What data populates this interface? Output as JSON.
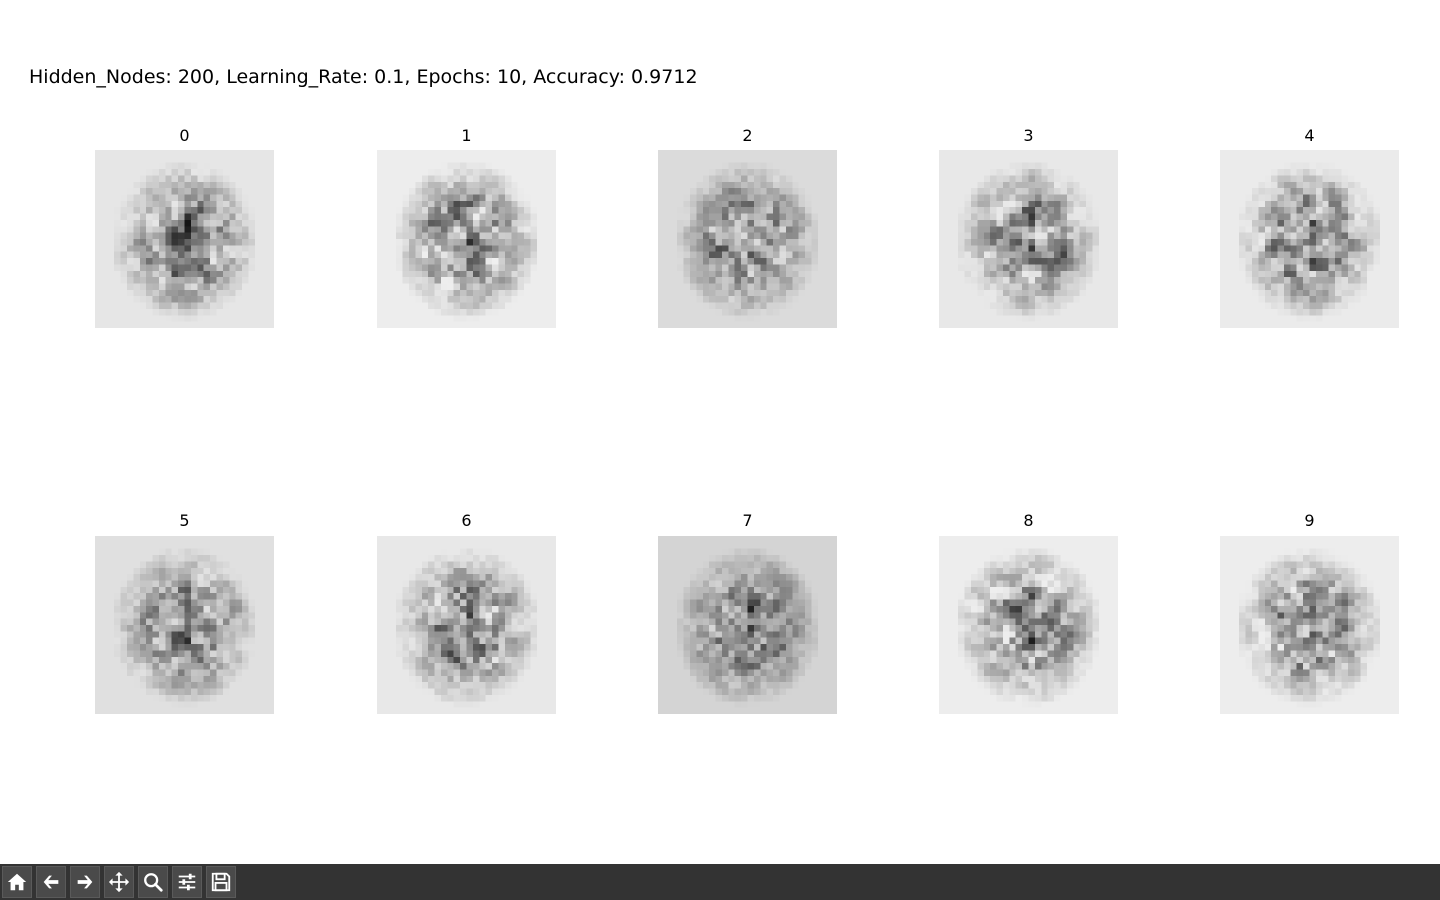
{
  "figure": {
    "suptitle": "Hidden_Nodes: 200, Learning_Rate: 0.1, Epochs: 10, Accuracy: 0.9712"
  },
  "panels": [
    {
      "label": "0",
      "background_gray": 0.9
    },
    {
      "label": "1",
      "background_gray": 0.93
    },
    {
      "label": "2",
      "background_gray": 0.86
    },
    {
      "label": "3",
      "background_gray": 0.91
    },
    {
      "label": "4",
      "background_gray": 0.92
    },
    {
      "label": "5",
      "background_gray": 0.88
    },
    {
      "label": "6",
      "background_gray": 0.91
    },
    {
      "label": "7",
      "background_gray": 0.83
    },
    {
      "label": "8",
      "background_gray": 0.93
    },
    {
      "label": "9",
      "background_gray": 0.93
    }
  ],
  "image": {
    "colormap": "gray_r",
    "grid_size": 28
  },
  "toolbar": {
    "background": "#333333",
    "buttons": [
      {
        "name": "home",
        "icon": "home-icon"
      },
      {
        "name": "back",
        "icon": "arrow-left-icon"
      },
      {
        "name": "forward",
        "icon": "arrow-right-icon"
      },
      {
        "name": "pan",
        "icon": "move-icon"
      },
      {
        "name": "zoom",
        "icon": "magnifier-icon"
      },
      {
        "name": "configure-subplots",
        "icon": "sliders-icon"
      },
      {
        "name": "save",
        "icon": "floppy-disk-icon"
      }
    ]
  }
}
